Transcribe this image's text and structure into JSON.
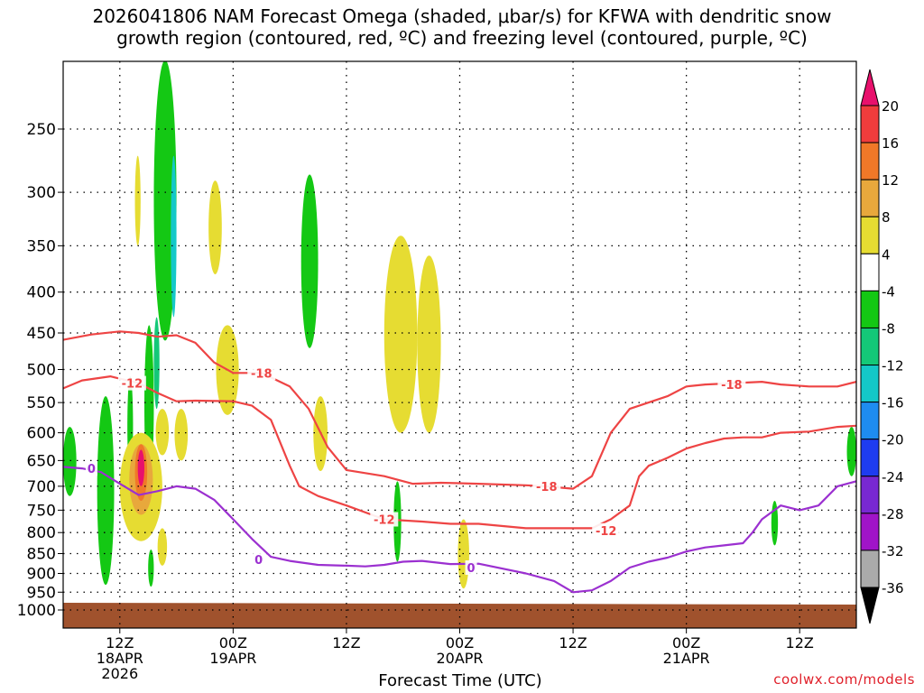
{
  "title": {
    "line1": "2026041806 NAM Forecast Omega (shaded, μbar/s) for KFWA with dendritic snow",
    "line2": "growth region (contoured, red, ºC) and freezing level (contoured, purple, ºC)"
  },
  "credit": "coolwx.com/models",
  "chart_data": {
    "type": "heatmap",
    "title": "2026041806 NAM Forecast Omega (shaded, μbar/s) for KFWA with dendritic snow growth region (contoured, red, ºC) and freezing level (contoured, purple, ºC)",
    "xlabel": "Forecast Time (UTC)",
    "ylabel": "",
    "x_range_hours": [
      6,
      90
    ],
    "y_range_hPa": [
      200,
      1025
    ],
    "y_scale": "log-pressure",
    "grid": true,
    "y_ticks": [
      250,
      300,
      350,
      400,
      450,
      500,
      550,
      600,
      650,
      700,
      750,
      800,
      850,
      900,
      950,
      1000
    ],
    "x_ticks": [
      {
        "hour": 12,
        "lines": [
          "12Z",
          "18APR",
          "2026"
        ]
      },
      {
        "hour": 24,
        "lines": [
          "00Z",
          "19APR"
        ]
      },
      {
        "hour": 36,
        "lines": [
          "12Z"
        ]
      },
      {
        "hour": 48,
        "lines": [
          "00Z",
          "20APR"
        ]
      },
      {
        "hour": 60,
        "lines": [
          "12Z"
        ]
      },
      {
        "hour": 72,
        "lines": [
          "00Z",
          "21APR"
        ]
      },
      {
        "hour": 84,
        "lines": [
          "12Z"
        ]
      }
    ],
    "colorbar": {
      "labels": [
        "20",
        "16",
        "12",
        "8",
        "4",
        "-4",
        "-8",
        "-12",
        "-16",
        "-20",
        "-24",
        "-28",
        "-32",
        "-36"
      ],
      "bounds": [
        20,
        16,
        12,
        8,
        4,
        -4,
        -8,
        -12,
        -16,
        -20,
        -24,
        -28,
        -32,
        -36
      ],
      "colors": {
        "above_20": "#e8106c",
        "16_20": "#f03c3c",
        "12_16": "#f07828",
        "8_12": "#e8a83c",
        "4_8": "#e6dc32",
        "-4_4": "#ffffff",
        "-8_-4": "#14c814",
        "-12_-8": "#14c878",
        "-16_-12": "#14c8c8",
        "-20_-16": "#1e8cf0",
        "-24_-20": "#1e3cf0",
        "-28_-24": "#7828d2",
        "-32_-28": "#a014c8",
        "-36_-32": "#aaaaaa",
        "below_-36": "#000000"
      }
    },
    "omega_cells": [
      {
        "value": -6,
        "hour_range": [
          9.6,
          11.4
        ],
        "p_range": [
          540,
          930
        ]
      },
      {
        "value": -6,
        "hour_range": [
          6.0,
          7.4
        ],
        "p_range": [
          590,
          720
        ]
      },
      {
        "value": -6,
        "hour_range": [
          12.8,
          13.4
        ],
        "p_range": [
          510,
          680
        ]
      },
      {
        "value": -6,
        "hour_range": [
          14.6,
          15.6
        ],
        "p_range": [
          440,
          700
        ]
      },
      {
        "value": -6,
        "hour_range": [
          15.6,
          18.0
        ],
        "p_range": [
          205,
          460
        ]
      },
      {
        "value": -10,
        "hour_range": [
          15.6,
          16.2
        ],
        "p_range": [
          430,
          560
        ]
      },
      {
        "value": -14,
        "hour_range": [
          17.4,
          18.0
        ],
        "p_range": [
          270,
          430
        ]
      },
      {
        "value": -6,
        "hour_range": [
          31.2,
          33.0
        ],
        "p_range": [
          285,
          470
        ]
      },
      {
        "value": -6,
        "hour_range": [
          15.0,
          15.6
        ],
        "p_range": [
          840,
          935
        ]
      },
      {
        "value": -6,
        "hour_range": [
          41.0,
          41.8
        ],
        "p_range": [
          690,
          870
        ]
      },
      {
        "value": -6,
        "hour_range": [
          89.0,
          90.0
        ],
        "p_range": [
          590,
          680
        ]
      },
      {
        "value": -6,
        "hour_range": [
          81.0,
          81.7
        ],
        "p_range": [
          730,
          830
        ]
      },
      {
        "value": 6,
        "hour_range": [
          13.6,
          14.2
        ],
        "p_range": [
          270,
          350
        ]
      },
      {
        "value": 6,
        "hour_range": [
          21.4,
          22.8
        ],
        "p_range": [
          290,
          380
        ]
      },
      {
        "value": 6,
        "hour_range": [
          22.2,
          24.6
        ],
        "p_range": [
          440,
          570
        ]
      },
      {
        "value": 6,
        "hour_range": [
          32.5,
          34.0
        ],
        "p_range": [
          540,
          670
        ]
      },
      {
        "value": 6,
        "hour_range": [
          40.0,
          43.5
        ],
        "p_range": [
          340,
          600
        ]
      },
      {
        "value": 6,
        "hour_range": [
          43.5,
          46.0
        ],
        "p_range": [
          360,
          600
        ]
      },
      {
        "value": 6,
        "hour_range": [
          47.8,
          49.0
        ],
        "p_range": [
          770,
          940
        ]
      },
      {
        "value": 6,
        "hour_range": [
          12.0,
          16.5
        ],
        "p_range": [
          600,
          820
        ]
      },
      {
        "value": 10,
        "hour_range": [
          13.0,
          15.5
        ],
        "p_range": [
          620,
          760
        ]
      },
      {
        "value": 14,
        "hour_range": [
          13.6,
          14.9
        ],
        "p_range": [
          620,
          730
        ]
      },
      {
        "value": 22,
        "hour_range": [
          13.9,
          14.6
        ],
        "p_range": [
          630,
          700
        ]
      },
      {
        "value": 6,
        "hour_range": [
          17.8,
          19.2
        ],
        "p_range": [
          560,
          650
        ]
      },
      {
        "value": 6,
        "hour_range": [
          15.8,
          17.2
        ],
        "p_range": [
          560,
          640
        ]
      },
      {
        "value": 6,
        "hour_range": [
          16.0,
          17.0
        ],
        "p_range": [
          790,
          880
        ]
      }
    ],
    "ground_level_hPa": 1000,
    "contours": [
      {
        "name": "-18",
        "color": "#ee4444",
        "label": "-18",
        "points": [
          [
            6,
            459
          ],
          [
            9,
            452
          ],
          [
            12,
            448
          ],
          [
            14,
            450
          ],
          [
            16,
            455
          ],
          [
            18,
            453
          ],
          [
            20,
            463
          ],
          [
            22,
            490
          ],
          [
            24,
            505
          ],
          [
            27,
            505
          ],
          [
            30,
            525
          ],
          [
            32,
            560
          ],
          [
            34,
            625
          ],
          [
            36,
            668
          ],
          [
            40,
            680
          ],
          [
            43,
            695
          ],
          [
            46,
            693
          ],
          [
            50,
            695
          ],
          [
            55,
            698
          ],
          [
            57,
            700
          ],
          [
            60,
            705
          ],
          [
            62,
            680
          ],
          [
            64,
            600
          ],
          [
            66,
            560
          ],
          [
            68,
            550
          ],
          [
            70,
            540
          ],
          [
            72,
            525
          ],
          [
            74,
            522
          ],
          [
            77,
            520
          ],
          [
            80,
            518
          ],
          [
            82,
            522
          ],
          [
            85,
            525
          ],
          [
            88,
            525
          ],
          [
            90,
            518
          ]
        ]
      },
      {
        "name": "-12",
        "color": "#ee4444",
        "label": "-12",
        "points": [
          [
            6,
            528
          ],
          [
            8,
            516
          ],
          [
            11,
            510
          ],
          [
            14,
            520
          ],
          [
            16,
            535
          ],
          [
            18,
            548
          ],
          [
            20,
            547
          ],
          [
            24,
            548
          ],
          [
            26,
            555
          ],
          [
            28,
            578
          ],
          [
            30,
            660
          ],
          [
            31,
            700
          ],
          [
            33,
            720
          ],
          [
            36,
            740
          ],
          [
            40,
            770
          ],
          [
            44,
            775
          ],
          [
            47,
            780
          ],
          [
            50,
            780
          ],
          [
            55,
            790
          ],
          [
            58,
            790
          ],
          [
            60,
            790
          ],
          [
            62,
            790
          ],
          [
            64,
            770
          ],
          [
            66,
            740
          ],
          [
            67,
            680
          ],
          [
            68,
            660
          ],
          [
            70,
            645
          ],
          [
            72,
            628
          ],
          [
            74,
            618
          ],
          [
            76,
            610
          ],
          [
            78,
            608
          ],
          [
            80,
            608
          ],
          [
            82,
            600
          ],
          [
            85,
            598
          ],
          [
            88,
            590
          ],
          [
            90,
            588
          ]
        ]
      },
      {
        "name": "0",
        "color": "#9b30d0",
        "label": "0",
        "points": [
          [
            6,
            662
          ],
          [
            8,
            665
          ],
          [
            10,
            672
          ],
          [
            12,
            695
          ],
          [
            14,
            718
          ],
          [
            16,
            710
          ],
          [
            18,
            700
          ],
          [
            20,
            705
          ],
          [
            22,
            728
          ],
          [
            24,
            770
          ],
          [
            26,
            815
          ],
          [
            28,
            858
          ],
          [
            30,
            868
          ],
          [
            33,
            878
          ],
          [
            36,
            880
          ],
          [
            38,
            882
          ],
          [
            40,
            878
          ],
          [
            42,
            870
          ],
          [
            44,
            868
          ],
          [
            47,
            876
          ],
          [
            50,
            875
          ],
          [
            55,
            900
          ],
          [
            58,
            920
          ],
          [
            60,
            950
          ],
          [
            62,
            945
          ],
          [
            64,
            920
          ],
          [
            66,
            885
          ],
          [
            68,
            870
          ],
          [
            70,
            860
          ],
          [
            72,
            845
          ],
          [
            74,
            835
          ],
          [
            76,
            830
          ],
          [
            78,
            825
          ],
          [
            79,
            800
          ],
          [
            80,
            770
          ],
          [
            82,
            740
          ],
          [
            84,
            750
          ],
          [
            86,
            740
          ],
          [
            88,
            700
          ],
          [
            90,
            690
          ]
        ]
      }
    ],
    "contour_labels": [
      {
        "text": "-12",
        "hour": 13.3,
        "p": 520,
        "color": "#ee4444"
      },
      {
        "text": "-18",
        "hour": 27.0,
        "p": 505,
        "color": "#ee4444"
      },
      {
        "text": "-18",
        "hour": 57.2,
        "p": 700,
        "color": "#ee4444"
      },
      {
        "text": "-18",
        "hour": 76.8,
        "p": 522,
        "color": "#ee4444"
      },
      {
        "text": "-12",
        "hour": 40.0,
        "p": 770,
        "color": "#ee4444"
      },
      {
        "text": "-12",
        "hour": 63.5,
        "p": 795,
        "color": "#ee4444"
      },
      {
        "text": "0",
        "hour": 9.0,
        "p": 665,
        "color": "#9b30d0"
      },
      {
        "text": "0",
        "hour": 26.7,
        "p": 865,
        "color": "#9b30d0"
      },
      {
        "text": "0",
        "hour": 49.2,
        "p": 885,
        "color": "#9b30d0"
      }
    ]
  }
}
